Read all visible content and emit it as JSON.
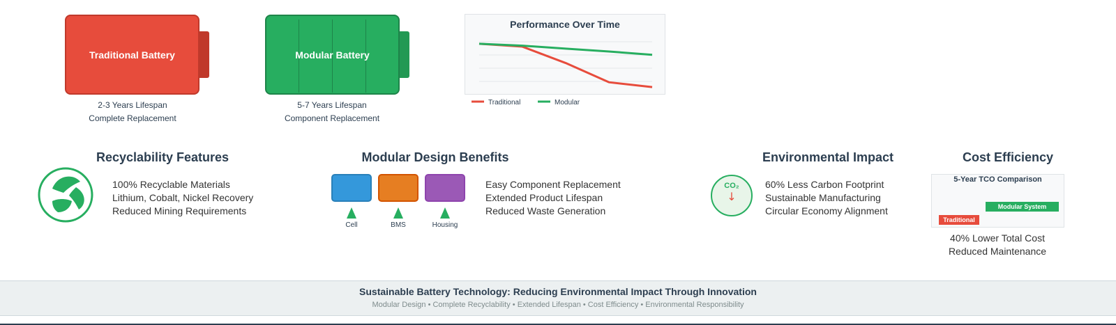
{
  "batteries": {
    "traditional": {
      "label": "Traditional Battery",
      "lifespan": "2-3 Years Lifespan",
      "note": "Complete Replacement"
    },
    "modular": {
      "label": "Modular Battery",
      "lifespan": "5-7 Years Lifespan",
      "note": "Component Replacement"
    }
  },
  "chart": {
    "chart_data": {
      "type": "line",
      "title": "Performance Over Time",
      "x": [
        0,
        1,
        2,
        3,
        4
      ],
      "series": [
        {
          "name": "Traditional",
          "color": "#e74c3c",
          "values": [
            100,
            94,
            60,
            20,
            10
          ]
        },
        {
          "name": "Modular",
          "color": "#27ae60",
          "values": [
            100,
            96,
            90,
            84,
            77
          ]
        }
      ],
      "ylim": [
        0,
        110
      ],
      "grid": true,
      "legend_placement": "bottom-left"
    }
  },
  "recyclability": {
    "title": "Recyclability Features",
    "items": [
      "100% Recyclable Materials",
      "Lithium, Cobalt, Nickel Recovery",
      "Reduced Mining Requirements"
    ]
  },
  "modular_design": {
    "title": "Modular Design Benefits",
    "modules": [
      {
        "label": "Cell",
        "color": "#3498db",
        "border": "#2980b9"
      },
      {
        "label": "BMS",
        "color": "#e67e22",
        "border": "#d35400"
      },
      {
        "label": "Housing",
        "color": "#9b59b6",
        "border": "#8e44ad"
      }
    ],
    "items": [
      "Easy Component Replacement",
      "Extended Product Lifespan",
      "Reduced Waste Generation"
    ]
  },
  "environment": {
    "title": "Environmental Impact",
    "co2_label": "CO₂",
    "co2_arrow": "↓",
    "items": [
      "60% Less Carbon Footprint",
      "Sustainable Manufacturing",
      "Circular Economy Alignment"
    ]
  },
  "cost": {
    "title": "Cost Efficiency",
    "chart_title": "5-Year TCO Comparison",
    "bars": [
      {
        "label": "Traditional",
        "color": "#e74c3c"
      },
      {
        "label": "Modular System",
        "color": "#27ae60"
      }
    ],
    "items": [
      "40% Lower Total Cost",
      "Reduced Maintenance"
    ]
  },
  "footer": {
    "title": "Sustainable Battery Technology: Reducing Environmental Impact Through Innovation",
    "subtitle": "Modular Design • Complete Recyclability • Extended Lifespan • Cost Efficiency • Environmental Responsibility"
  }
}
